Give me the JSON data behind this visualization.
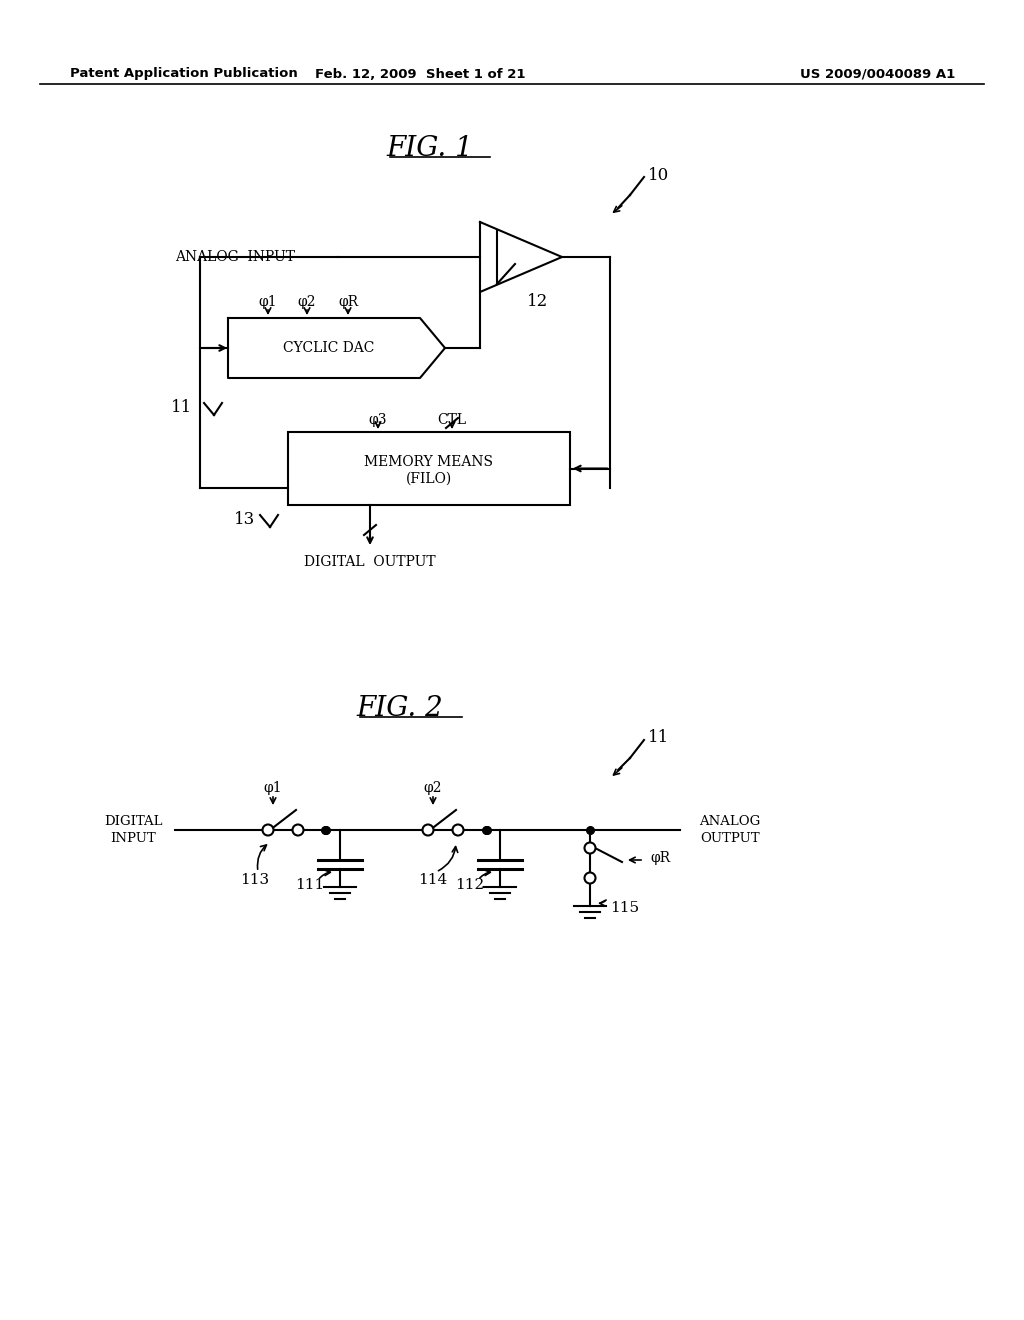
{
  "bg_color": "#ffffff",
  "header_left": "Patent Application Publication",
  "header_mid": "Feb. 12, 2009  Sheet 1 of 21",
  "header_right": "US 2009/0040089 A1",
  "font_color": "#000000",
  "line_color": "#000000",
  "line_width": 1.5
}
